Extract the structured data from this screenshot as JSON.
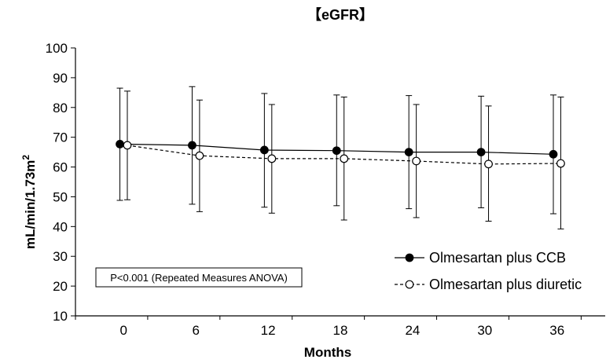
{
  "chart_data": {
    "type": "line",
    "title": "【eGFR】",
    "xlabel": "Months",
    "ylabel": "mL/min/1.73m",
    "ylabel_superscript": "2",
    "x": [
      0,
      6,
      12,
      18,
      24,
      30,
      36
    ],
    "x_tick_labels": [
      "0",
      "6",
      "12",
      "18",
      "24",
      "30",
      "36"
    ],
    "ylim": [
      10,
      100
    ],
    "y_ticks": [
      10,
      20,
      30,
      40,
      50,
      60,
      70,
      80,
      90,
      100
    ],
    "grid": false,
    "legend_position": "lower-right",
    "series": [
      {
        "name": "Olmesartan plus CCB",
        "marker": "filled-circle",
        "line_style": "solid",
        "values": [
          67.7,
          67.3,
          65.7,
          65.5,
          65.0,
          65.0,
          64.3
        ],
        "error_low": [
          48.8,
          47.5,
          46.5,
          47.0,
          46.0,
          46.3,
          44.3
        ],
        "error_high": [
          86.5,
          87.0,
          84.7,
          84.2,
          84.0,
          83.8,
          84.2
        ],
        "color": "#000000"
      },
      {
        "name": "Olmesartan plus diuretic",
        "marker": "open-circle",
        "line_style": "dashed",
        "values": [
          67.3,
          63.8,
          62.8,
          62.8,
          62.0,
          61.0,
          61.2
        ],
        "error_low": [
          49.0,
          45.0,
          44.5,
          42.2,
          43.0,
          41.8,
          39.2
        ],
        "error_high": [
          85.5,
          82.5,
          81.0,
          83.5,
          81.0,
          80.5,
          83.5
        ],
        "color": "#000000"
      }
    ],
    "annotation": "P<0.001 (Repeated Measures ANOVA)"
  }
}
